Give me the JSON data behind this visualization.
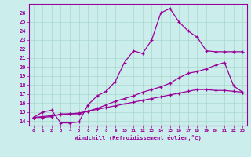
{
  "xlabel": "Windchill (Refroidissement éolien,°C)",
  "bg_color": "#cbeeed",
  "grid_color": "#a8d8cc",
  "line_color": "#990099",
  "xlim": [
    -0.5,
    23.5
  ],
  "ylim": [
    13.5,
    27.0
  ],
  "xticks": [
    0,
    1,
    2,
    3,
    4,
    5,
    6,
    7,
    8,
    9,
    10,
    11,
    12,
    13,
    14,
    15,
    16,
    17,
    18,
    19,
    20,
    21,
    22,
    23
  ],
  "yticks": [
    14,
    15,
    16,
    17,
    18,
    19,
    20,
    21,
    22,
    23,
    24,
    25,
    26
  ],
  "curve1_x": [
    0,
    1,
    2,
    3,
    4,
    5,
    6,
    7,
    8,
    9,
    10,
    11,
    12,
    13,
    14,
    15,
    16,
    17,
    18,
    19,
    20,
    21,
    22,
    23
  ],
  "curve1_y": [
    14.4,
    15.0,
    15.2,
    13.8,
    13.8,
    13.9,
    15.8,
    16.8,
    17.3,
    18.4,
    20.5,
    21.8,
    21.5,
    23.0,
    26.0,
    26.5,
    25.0,
    24.0,
    23.3,
    21.8,
    21.7,
    21.7,
    21.7,
    21.7
  ],
  "curve2_x": [
    0,
    1,
    2,
    3,
    4,
    5,
    6,
    7,
    8,
    9,
    10,
    11,
    12,
    13,
    14,
    15,
    16,
    17,
    18,
    19,
    20,
    21,
    22,
    23
  ],
  "curve2_y": [
    14.4,
    14.4,
    14.5,
    14.8,
    14.8,
    14.8,
    15.1,
    15.4,
    15.8,
    16.2,
    16.5,
    16.8,
    17.2,
    17.5,
    17.8,
    18.2,
    18.8,
    19.3,
    19.5,
    19.8,
    20.2,
    20.5,
    17.9,
    17.2
  ],
  "curve3_x": [
    0,
    1,
    2,
    3,
    4,
    5,
    6,
    7,
    8,
    9,
    10,
    11,
    12,
    13,
    14,
    15,
    16,
    17,
    18,
    19,
    20,
    21,
    22,
    23
  ],
  "curve3_y": [
    14.4,
    14.5,
    14.6,
    14.7,
    14.8,
    14.9,
    15.1,
    15.3,
    15.5,
    15.7,
    15.9,
    16.1,
    16.3,
    16.5,
    16.7,
    16.9,
    17.1,
    17.3,
    17.5,
    17.5,
    17.4,
    17.4,
    17.3,
    17.2
  ]
}
